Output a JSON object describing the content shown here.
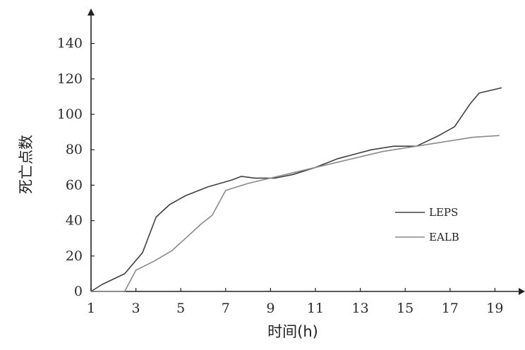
{
  "chart_data": {
    "type": "line",
    "title": "",
    "xlabel": "时间(h)",
    "ylabel": "死亡点数",
    "xlim": [
      1,
      20
    ],
    "ylim": [
      0,
      150
    ],
    "x_ticks": [
      1,
      3,
      5,
      7,
      9,
      11,
      13,
      15,
      17,
      19
    ],
    "y_ticks": [
      0,
      20,
      40,
      60,
      80,
      100,
      120,
      140
    ],
    "grid": false,
    "legend_position": "right",
    "series": [
      {
        "name": "LEPS",
        "color": "#404040",
        "points": [
          [
            1,
            0
          ],
          [
            1.5,
            4
          ],
          [
            2.5,
            10
          ],
          [
            3.3,
            22
          ],
          [
            3.9,
            42
          ],
          [
            4.5,
            49
          ],
          [
            5.2,
            54
          ],
          [
            6.2,
            59
          ],
          [
            7.3,
            63
          ],
          [
            7.7,
            65
          ],
          [
            8.3,
            64
          ],
          [
            9.2,
            64
          ],
          [
            10,
            66
          ],
          [
            11,
            70
          ],
          [
            12,
            75
          ],
          [
            13.5,
            80
          ],
          [
            14.5,
            82
          ],
          [
            15.5,
            82
          ],
          [
            16,
            85
          ],
          [
            16.5,
            88
          ],
          [
            17.2,
            93
          ],
          [
            17.9,
            106
          ],
          [
            18.3,
            112
          ],
          [
            19.3,
            115
          ]
        ]
      },
      {
        "name": "EALB",
        "color": "#8a8a8a",
        "points": [
          [
            1,
            0
          ],
          [
            2,
            0
          ],
          [
            2.5,
            0
          ],
          [
            3,
            12
          ],
          [
            3.8,
            17
          ],
          [
            4.6,
            23
          ],
          [
            5.3,
            31
          ],
          [
            5.9,
            38
          ],
          [
            6.4,
            43
          ],
          [
            7,
            57
          ],
          [
            8,
            61
          ],
          [
            9,
            64
          ],
          [
            10,
            67
          ],
          [
            11,
            70
          ],
          [
            12,
            73
          ],
          [
            13,
            76
          ],
          [
            14,
            79
          ],
          [
            15,
            81
          ],
          [
            16,
            83
          ],
          [
            17,
            85
          ],
          [
            18,
            87
          ],
          [
            19.2,
            88
          ]
        ]
      }
    ]
  }
}
